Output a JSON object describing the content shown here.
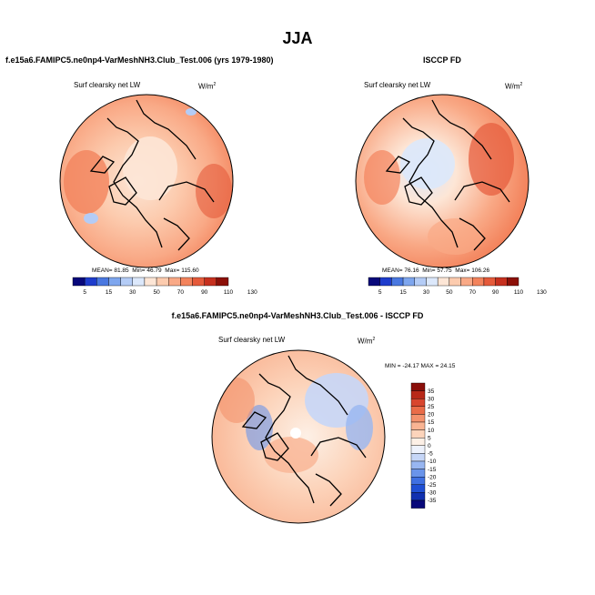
{
  "figure": {
    "title": "JJA"
  },
  "chart_data": [
    {
      "type": "heatmap",
      "projection": "north-polar-stereographic",
      "case_label": "f.e15a6.FAMIPC5.ne0np4-VarMeshNH3.Club_Test.006 (yrs 1979-1980)",
      "variable": "Surf clearsky net LW",
      "units": "W/m",
      "units_sup": "2",
      "stats": {
        "mean_label": "MEAN=",
        "mean": "81.85",
        "min_label": "Min=",
        "min": "46.79",
        "max_label": "Max=",
        "max": "115.60"
      },
      "colorbar_levels": [
        "5",
        "15",
        "30",
        "50",
        "70",
        "90",
        "110",
        "130"
      ]
    },
    {
      "type": "heatmap",
      "projection": "north-polar-stereographic",
      "case_label": "ISCCP FD",
      "variable": "Surf clearsky net LW",
      "units": "W/m",
      "units_sup": "2",
      "stats": {
        "mean_label": "MEAN=",
        "mean": "76.16",
        "min_label": "Min=",
        "min": "57.75",
        "max_label": "Max=",
        "max": "106.26"
      },
      "colorbar_levels": [
        "5",
        "15",
        "30",
        "50",
        "70",
        "90",
        "110",
        "130"
      ]
    },
    {
      "type": "heatmap",
      "projection": "north-polar-stereographic",
      "case_label": "f.e15a6.FAMIPC5.ne0np4-VarMeshNH3.Club_Test.006 - ISCCP FD",
      "variable": "Surf clearsky net LW",
      "units": "W/m",
      "units_sup": "2",
      "stats_text": "MIN = -24.17 MAX =  24.15",
      "colorbar_levels": [
        "35",
        "30",
        "25",
        "20",
        "15",
        "10",
        "5",
        "0",
        "-5",
        "-10",
        "-15",
        "-20",
        "-25",
        "-30",
        "-35"
      ]
    }
  ],
  "colors": {
    "abs_scale": [
      "#08087a",
      "#1e3ccc",
      "#4a78e0",
      "#7ea6ee",
      "#b4ccf6",
      "#dce8fb",
      "#fde6d6",
      "#fccbae",
      "#f9a986",
      "#f3835c",
      "#e55a3a",
      "#c6301e",
      "#8c1008"
    ],
    "diff_scale": [
      "#08087a",
      "#1030b0",
      "#1f4fd4",
      "#3f70e2",
      "#6a94ea",
      "#98b6f1",
      "#c6d6f7",
      "#eef2fc",
      "#fdf0e6",
      "#fcd4bb",
      "#f9b493",
      "#f4926d",
      "#ea6c48",
      "#d8462e",
      "#b82818",
      "#8a0e0a"
    ],
    "coast": "#000000"
  }
}
